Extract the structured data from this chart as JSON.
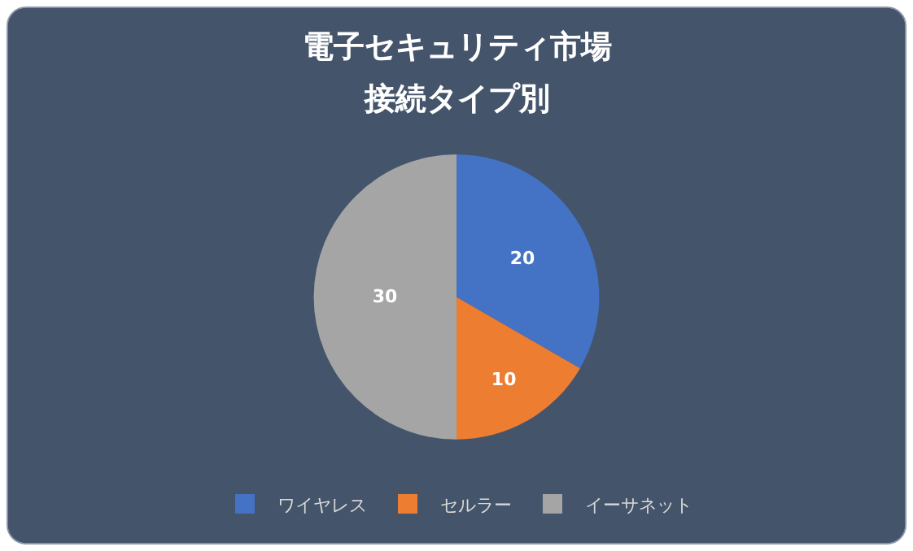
{
  "chart_data": {
    "type": "pie",
    "title": "電子セキュリティ市場",
    "subtitle": "接続タイプ別",
    "categories": [
      "ワイヤレス",
      "セルラー",
      "イーサネット"
    ],
    "values": [
      20,
      10,
      30
    ],
    "colors": [
      "#4472c4",
      "#ed7d31",
      "#a5a5a5"
    ],
    "data_labels": true,
    "legend": "bottom"
  }
}
